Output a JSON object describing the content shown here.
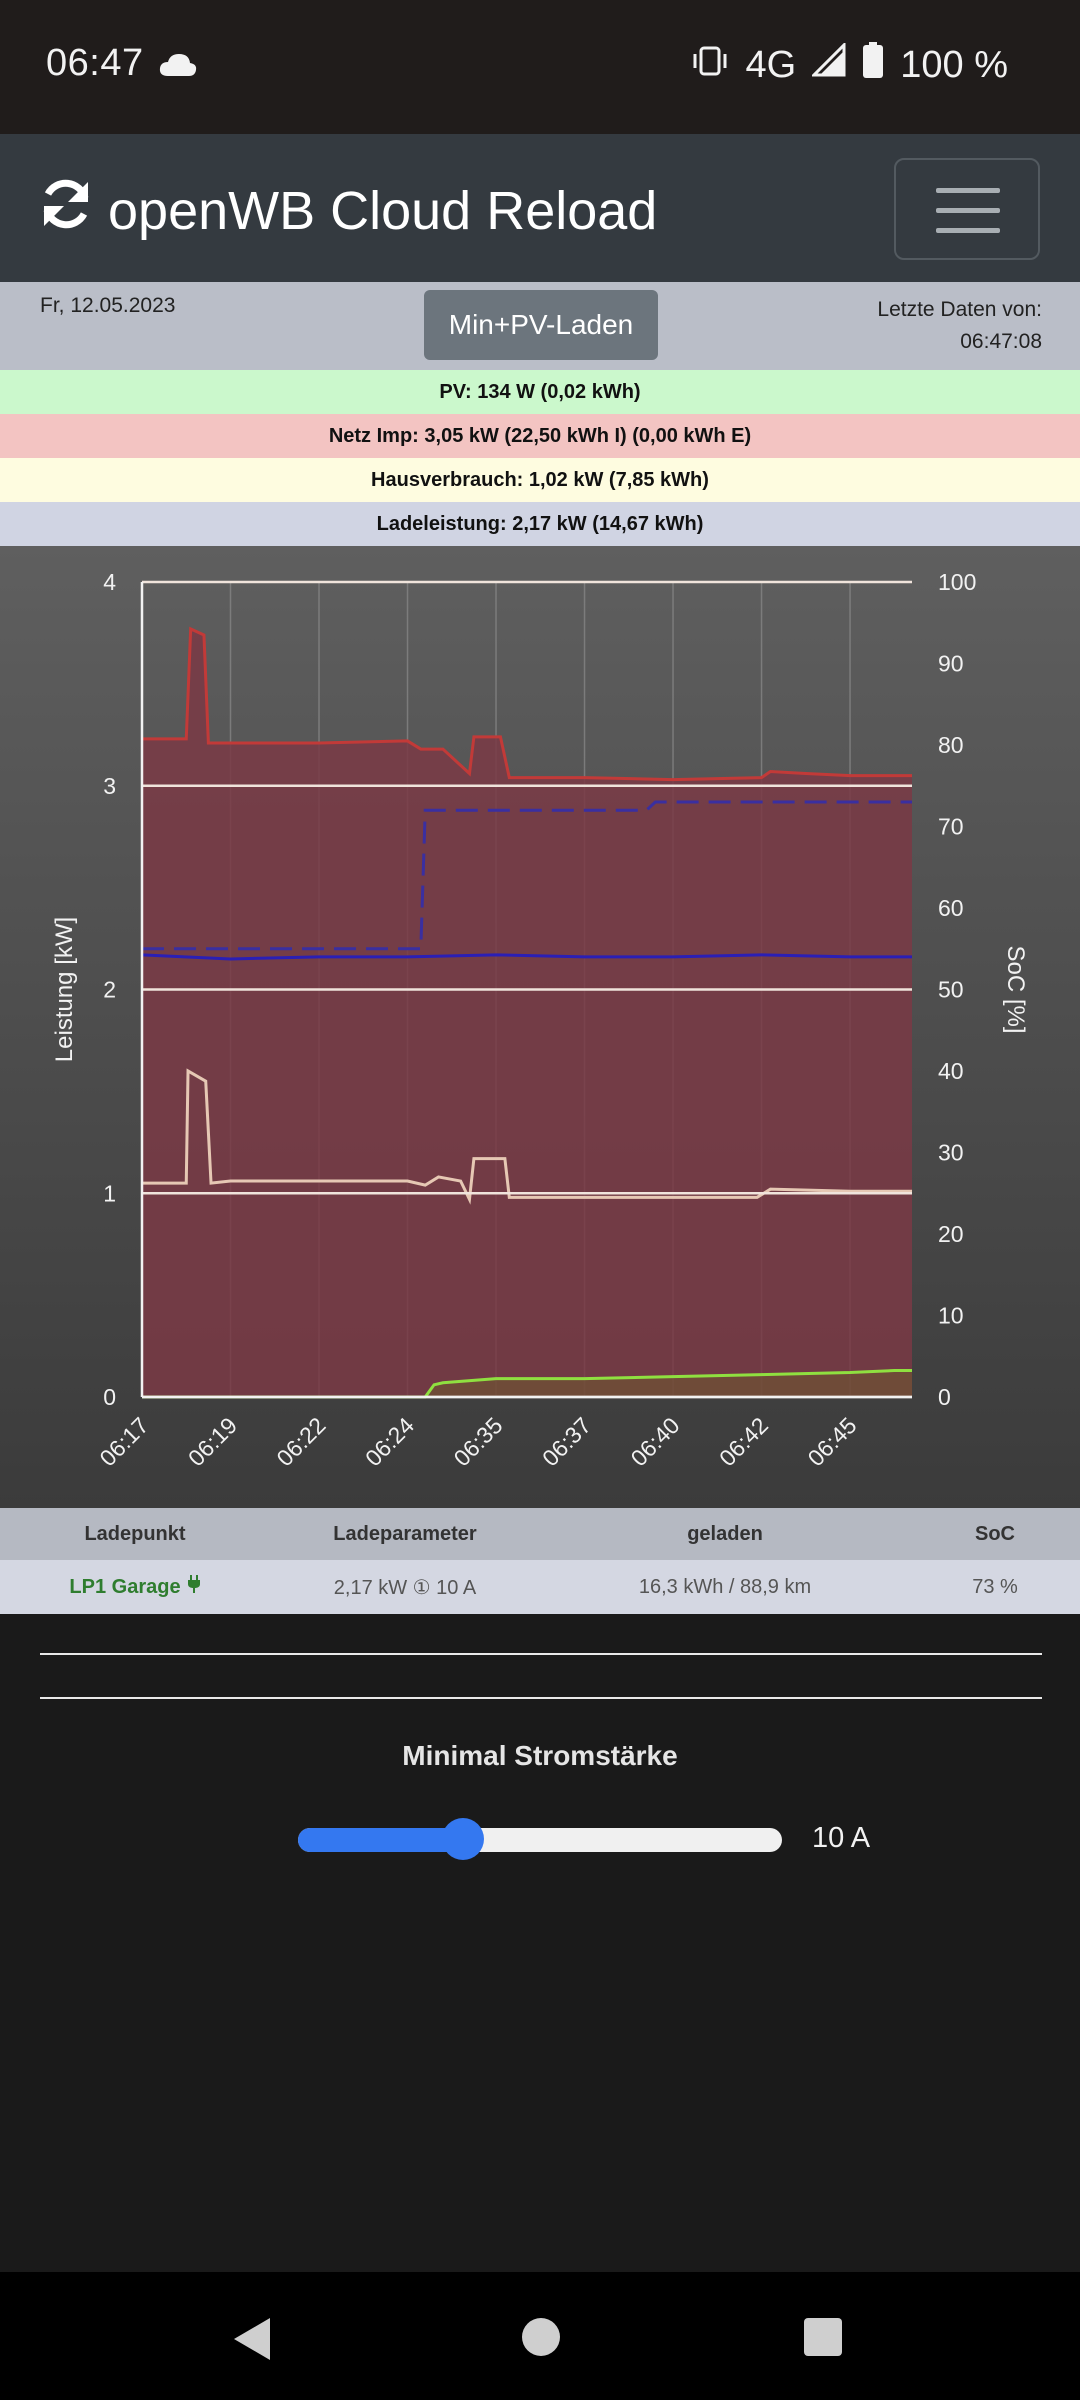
{
  "status_bar": {
    "time": "06:47",
    "network": "4G",
    "battery": "100 %",
    "icons": [
      "cloud-icon",
      "vibrate-icon",
      "signal-icon",
      "battery-icon"
    ]
  },
  "header": {
    "title": "openWB Cloud Reload",
    "icons": [
      "refresh-icon",
      "hamburger-menu-icon"
    ]
  },
  "info": {
    "date": "Fr, 12.05.2023",
    "mode_button": "Min+PV-Laden",
    "last_data_label": "Letzte Daten von:",
    "last_data_time": "06:47:08"
  },
  "summary": {
    "pv": "PV: 134 W (0,02 kWh)",
    "netz": "Netz Imp: 3,05 kW (22,50 kWh I) (0,00 kWh E)",
    "haus": "Hausverbrauch: 1,02 kW (7,85 kWh)",
    "lade": "Ladeleistung: 2,17 kW (14,67 kWh)"
  },
  "chart_data": {
    "type": "area",
    "ylabel": "Leistung [kW]",
    "y2label": "SoC [%]",
    "ylim": [
      0,
      4
    ],
    "y2lim": [
      0,
      100
    ],
    "yticks": [
      "0",
      "1",
      "2",
      "3",
      "4"
    ],
    "y2ticks": [
      "0",
      "10",
      "20",
      "30",
      "40",
      "50",
      "60",
      "70",
      "80",
      "90",
      "100"
    ],
    "x_tick_labels": [
      "06:17",
      "06:19",
      "06:22",
      "06:24",
      "06:35",
      "06:37",
      "06:40",
      "06:42",
      "06:45"
    ],
    "grid": true,
    "series": [
      {
        "axis": "left",
        "color": "#7a3a45",
        "style": "area",
        "points": [
          [
            0,
            3.23
          ],
          [
            0.5,
            3.23
          ],
          [
            0.55,
            3.77
          ],
          [
            0.7,
            3.74
          ],
          [
            0.75,
            3.21
          ],
          [
            1,
            3.21
          ],
          [
            2,
            3.21
          ],
          [
            3,
            3.22
          ],
          [
            3.15,
            3.18
          ],
          [
            3.4,
            3.18
          ],
          [
            3.7,
            3.06
          ],
          [
            3.75,
            3.24
          ],
          [
            4.05,
            3.24
          ],
          [
            4.15,
            3.04
          ],
          [
            4.5,
            3.04
          ],
          [
            5,
            3.04
          ],
          [
            6,
            3.03
          ],
          [
            7,
            3.04
          ],
          [
            7.1,
            3.07
          ],
          [
            7.5,
            3.06
          ],
          [
            8,
            3.05
          ],
          [
            8.7,
            3.05
          ]
        ]
      },
      {
        "axis": "left",
        "color": "#e6c8b4",
        "style": "line",
        "points": [
          [
            0,
            1.05
          ],
          [
            0.5,
            1.05
          ],
          [
            0.52,
            1.6
          ],
          [
            0.72,
            1.55
          ],
          [
            0.78,
            1.05
          ],
          [
            1,
            1.06
          ],
          [
            2,
            1.06
          ],
          [
            3,
            1.06
          ],
          [
            3.2,
            1.04
          ],
          [
            3.35,
            1.08
          ],
          [
            3.6,
            1.06
          ],
          [
            3.7,
            0.97
          ],
          [
            3.75,
            1.17
          ],
          [
            4.1,
            1.17
          ],
          [
            4.15,
            0.98
          ],
          [
            5,
            0.98
          ],
          [
            6,
            0.98
          ],
          [
            6.95,
            0.98
          ],
          [
            7.1,
            1.02
          ],
          [
            8,
            1.01
          ],
          [
            8.7,
            1.01
          ]
        ]
      },
      {
        "axis": "left",
        "color": "#2a1fb5",
        "style": "line",
        "points": [
          [
            0,
            2.17
          ],
          [
            1,
            2.15
          ],
          [
            2,
            2.16
          ],
          [
            3,
            2.16
          ],
          [
            4,
            2.17
          ],
          [
            5,
            2.16
          ],
          [
            6,
            2.16
          ],
          [
            7,
            2.17
          ],
          [
            8,
            2.16
          ],
          [
            8.7,
            2.16
          ]
        ]
      },
      {
        "axis": "right",
        "color": "#3a2fa0",
        "style": "dashed",
        "points": [
          [
            0,
            55
          ],
          [
            3.0,
            55
          ],
          [
            3.15,
            55
          ],
          [
            3.2,
            72
          ],
          [
            4,
            72
          ],
          [
            5,
            72
          ],
          [
            5.7,
            72
          ],
          [
            5.8,
            73
          ],
          [
            7,
            73
          ],
          [
            8.7,
            73
          ]
        ]
      },
      {
        "axis": "left",
        "color": "#8fe040",
        "style": "area-line",
        "points": [
          [
            0,
            0
          ],
          [
            3.2,
            0
          ],
          [
            3.3,
            0.06
          ],
          [
            3.4,
            0.07
          ],
          [
            4,
            0.09
          ],
          [
            5,
            0.09
          ],
          [
            6,
            0.1
          ],
          [
            7,
            0.11
          ],
          [
            8,
            0.12
          ],
          [
            8.5,
            0.13
          ],
          [
            8.7,
            0.13
          ]
        ]
      }
    ]
  },
  "table": {
    "headers": [
      "Ladepunkt",
      "Ladeparameter",
      "geladen",
      "SoC"
    ],
    "row": {
      "ladepunkt": "LP1 Garage",
      "ladepunkt_icon": "plug-icon",
      "parameter": "2,17 kW ① 10 A",
      "geladen": "16,3 kWh / 88,9 km",
      "soc": "73 %"
    }
  },
  "settings": {
    "title": "Minimal Stromstärke",
    "slider_fraction": 0.34,
    "slider_value": "10 A"
  },
  "system_nav": [
    "back-icon",
    "home-icon",
    "recent-apps-icon"
  ]
}
